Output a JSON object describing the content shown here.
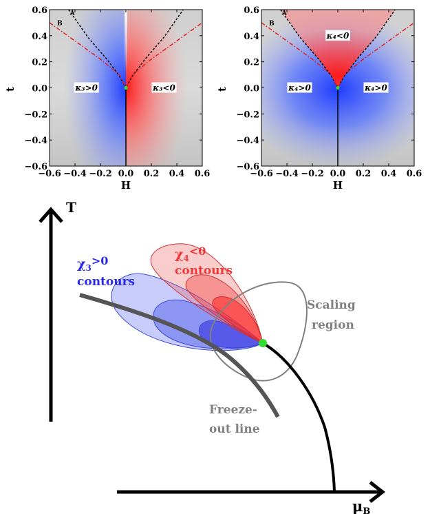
{
  "chart_data": [
    {
      "type": "heatmap",
      "xlabel": "H",
      "ylabel": "t",
      "xlim": [
        -0.6,
        0.6
      ],
      "ylim": [
        -0.6,
        0.6
      ],
      "xticks": [
        "−0.6",
        "−0.4",
        "−0.2",
        "0.0",
        "0.2",
        "0.4",
        "0.6"
      ],
      "yticks": [
        "0.6",
        "0.4",
        "0.2",
        "0.0",
        "−0.2",
        "−0.4",
        "−0.6"
      ],
      "regions": [
        {
          "label": "κ₃>0",
          "sign_color": "#1f3cff",
          "at": [
            -0.31,
            0.0
          ]
        },
        {
          "label": "κ₃<0",
          "sign_color": "#ff2020",
          "at": [
            0.3,
            0.0
          ]
        }
      ],
      "curves": [
        {
          "name": "A",
          "style": "dashed",
          "color": "#000000",
          "points": [
            [
              -0.45,
              0.6
            ],
            [
              -0.3,
              0.39
            ],
            [
              -0.15,
              0.22
            ],
            [
              -0.05,
              0.09
            ],
            [
              0.0,
              0.0
            ],
            [
              0.05,
              0.09
            ],
            [
              0.15,
              0.22
            ],
            [
              0.3,
              0.39
            ],
            [
              0.45,
              0.6
            ]
          ]
        },
        {
          "name": "B",
          "style": "dash-dot",
          "color": "#e0201e",
          "points": [
            [
              -0.6,
              0.5
            ],
            [
              -0.4,
              0.36
            ],
            [
              -0.2,
              0.22
            ],
            [
              -0.05,
              0.1
            ],
            [
              0.0,
              0.0
            ],
            [
              0.05,
              0.1
            ],
            [
              0.2,
              0.22
            ],
            [
              0.4,
              0.36
            ],
            [
              0.6,
              0.5
            ]
          ]
        }
      ],
      "first_order_line": {
        "H": 0.0,
        "t_range": [
          -0.6,
          0.0
        ]
      },
      "critical_point": [
        0.0,
        0.0
      ],
      "curve_labels": [
        "A",
        "B"
      ]
    },
    {
      "type": "heatmap",
      "xlabel": "H",
      "ylabel": "t",
      "xlim": [
        -0.6,
        0.6
      ],
      "ylim": [
        -0.6,
        0.6
      ],
      "xticks": [
        "−0.6",
        "−0.4",
        "−0.2",
        "0.0",
        "0.2",
        "0.4",
        "0.6"
      ],
      "yticks": [
        "0.6",
        "0.4",
        "0.2",
        "0.0",
        "−0.2",
        "−0.4",
        "−0.6"
      ],
      "regions": [
        {
          "label": "κ₄<0",
          "sign_color": "#ff2020",
          "at": [
            0.0,
            0.4
          ]
        },
        {
          "label": "κ₄>0",
          "sign_color": "#1f3cff",
          "at": [
            -0.3,
            0.0
          ]
        },
        {
          "label": "κ₄>0",
          "sign_color": "#1f3cff",
          "at": [
            0.3,
            0.0
          ]
        }
      ],
      "curves": [
        {
          "name": "A",
          "style": "dashed",
          "color": "#000000",
          "points": [
            [
              -0.45,
              0.6
            ],
            [
              -0.3,
              0.39
            ],
            [
              -0.15,
              0.22
            ],
            [
              -0.05,
              0.09
            ],
            [
              0.0,
              0.0
            ],
            [
              0.05,
              0.09
            ],
            [
              0.15,
              0.22
            ],
            [
              0.3,
              0.39
            ],
            [
              0.45,
              0.6
            ]
          ]
        },
        {
          "name": "B",
          "style": "dash-dot",
          "color": "#e0201e",
          "points": [
            [
              -0.6,
              0.5
            ],
            [
              -0.4,
              0.36
            ],
            [
              -0.2,
              0.22
            ],
            [
              -0.05,
              0.1
            ],
            [
              0.0,
              0.0
            ],
            [
              0.05,
              0.1
            ],
            [
              0.2,
              0.22
            ],
            [
              0.4,
              0.36
            ],
            [
              0.6,
              0.5
            ]
          ]
        }
      ],
      "first_order_line": {
        "H": 0.0,
        "t_range": [
          -0.6,
          0.0
        ]
      },
      "critical_point": [
        0.0,
        0.0
      ],
      "curve_labels": [
        "A",
        "B"
      ]
    },
    {
      "type": "diagram",
      "axes": {
        "x_label": "μ",
        "x_sub": "B",
        "y_label": "T"
      },
      "labels": {
        "chi3_sym": "χ",
        "chi3_sub": "3",
        "chi3_sign": ">0",
        "chi3_word": "contours",
        "chi4_sym": "χ",
        "chi4_sub": "4",
        "chi4_sign": "<0",
        "chi4_word": "contours",
        "scaling_1": "Scaling",
        "scaling_2": "region",
        "freeze_1": "Freeze-",
        "freeze_2": "out line"
      },
      "colors": {
        "chi3": "#2a2ae8",
        "chi4": "#f03838",
        "critical_point": "#33dd33",
        "gray_text": "#808080"
      }
    }
  ]
}
